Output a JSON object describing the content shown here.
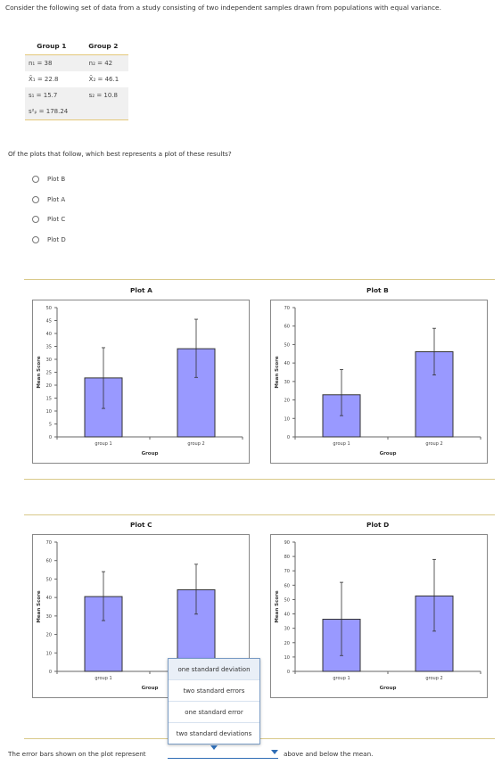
{
  "intro": "Consider the following set of data from a study consisting of two independent samples drawn from populations with equal variance.",
  "table": {
    "headers": [
      "Group 1",
      "Group 2"
    ],
    "rows": [
      {
        "c1": "n₁ = 38",
        "c2": "n₂ = 42"
      },
      {
        "c1": "X̄₁ = 22.8",
        "c2": "X̄₂ = 46.1"
      },
      {
        "c1": "s₁ = 15.7",
        "c2": "s₂ = 10.8"
      },
      {
        "c1": "s²ₚ = 178.24",
        "c2": ""
      }
    ]
  },
  "question": "Of the plots that follow, which best represents a plot of these results?",
  "options": [
    "Plot B",
    "Plot A",
    "Plot C",
    "Plot D"
  ],
  "colors": {
    "bar": "#9999ff",
    "bar_stroke": "#333333",
    "separator": "#d9c98a",
    "dropdown_accent": "#2f6db5"
  },
  "chart_data": [
    {
      "type": "bar",
      "title": "Plot A",
      "xlabel": "Group",
      "ylabel": "Mean Score",
      "categories": [
        "group 1",
        "group 2"
      ],
      "values": [
        22.8,
        34.1
      ],
      "error": [
        [
          11,
          34.5
        ],
        [
          23,
          45.5
        ]
      ],
      "ylim": [
        0,
        50
      ],
      "yticks": [
        0,
        5,
        10,
        15,
        20,
        25,
        30,
        35,
        40,
        45,
        50
      ]
    },
    {
      "type": "bar",
      "title": "Plot B",
      "xlabel": "Group",
      "ylabel": "Mean Score",
      "categories": [
        "group 1",
        "group 2"
      ],
      "values": [
        22.8,
        46.1
      ],
      "error": [
        [
          11.5,
          36.5
        ],
        [
          33.5,
          58.8
        ]
      ],
      "ylim": [
        0,
        70
      ],
      "yticks": [
        0,
        10,
        20,
        30,
        40,
        50,
        60,
        70
      ]
    },
    {
      "type": "bar",
      "title": "Plot C",
      "xlabel": "Group",
      "ylabel": "Mean Score",
      "categories": [
        "group 1",
        "group 2"
      ],
      "values": [
        40.5,
        44.2
      ],
      "error": [
        [
          27.5,
          54
        ],
        [
          31,
          58
        ]
      ],
      "ylim": [
        0,
        70
      ],
      "yticks": [
        0,
        10,
        20,
        30,
        40,
        50,
        60,
        70
      ]
    },
    {
      "type": "bar",
      "title": "Plot D",
      "xlabel": "Group",
      "ylabel": "Mean Score",
      "categories": [
        "group 1",
        "group 2"
      ],
      "values": [
        36.3,
        52.5
      ],
      "error": [
        [
          11,
          62
        ],
        [
          28,
          78
        ]
      ],
      "ylim": [
        0,
        90
      ],
      "yticks": [
        0,
        10,
        20,
        30,
        40,
        50,
        60,
        70,
        80,
        90
      ]
    }
  ],
  "dropdown": {
    "options": [
      "one standard deviation",
      "two standard errors",
      "one standard error",
      "two standard deviations"
    ],
    "prefix": "The error bars shown on the plot represent",
    "suffix": "above and below the mean."
  }
}
